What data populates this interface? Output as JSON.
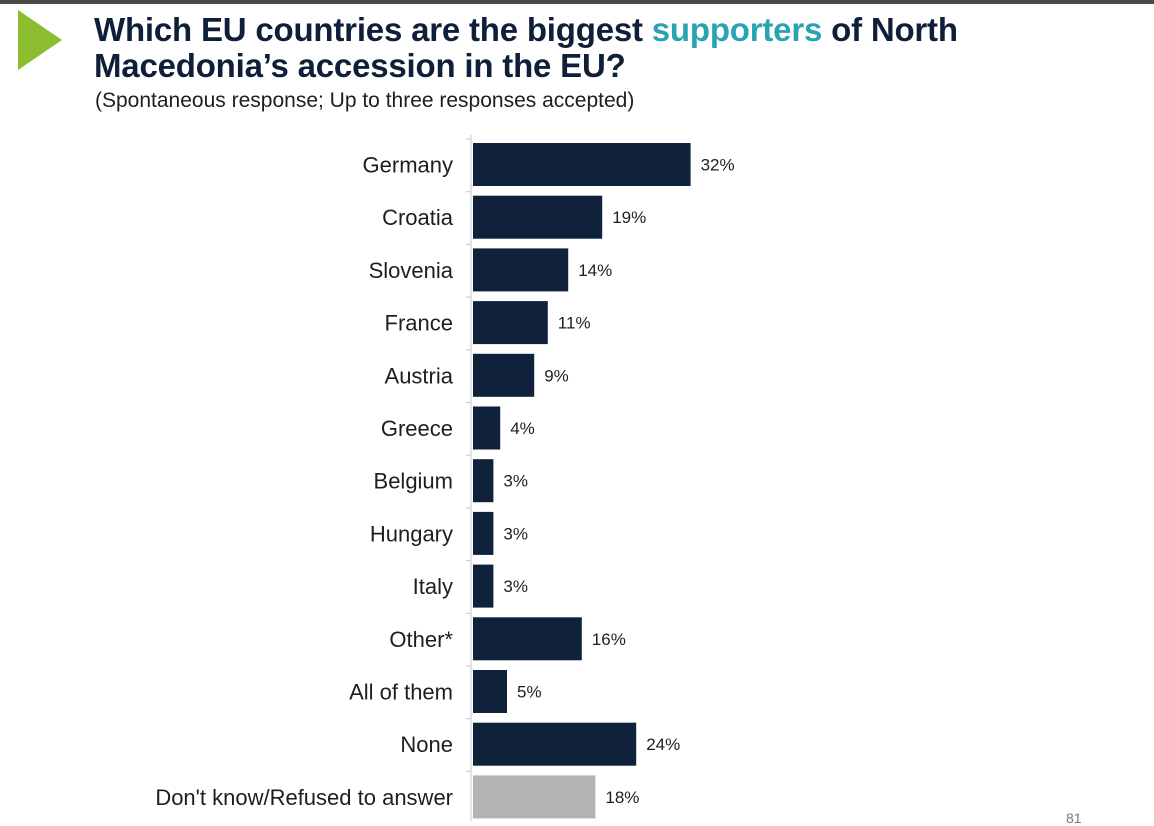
{
  "header": {
    "title_part1": "Which EU countries are the biggest ",
    "title_highlight": "supporters",
    "title_part2": " of North Macedonia’s accession in the EU?",
    "subtitle": "(Spontaneous response; Up to three responses accepted)",
    "highlight_color": "#2aa3b3",
    "icon": "play-triangle-icon"
  },
  "page_number": "81",
  "colors": {
    "bar": "#10213c",
    "bar_muted": "#b3b3b3",
    "accent": "#8cbc2f"
  },
  "chart_data": {
    "type": "bar",
    "orientation": "horizontal",
    "categories": [
      "Germany",
      "Croatia",
      "Slovenia",
      "France",
      "Austria",
      "Greece",
      "Belgium",
      "Hungary",
      "Italy",
      "Other*",
      "All of them",
      "None",
      "Don't know/Refused to answer"
    ],
    "values": [
      32,
      19,
      14,
      11,
      9,
      4,
      3,
      3,
      3,
      16,
      5,
      24,
      18
    ],
    "value_labels": [
      "32%",
      "19%",
      "14%",
      "11%",
      "9%",
      "4%",
      "3%",
      "3%",
      "3%",
      "16%",
      "5%",
      "24%",
      "18%"
    ],
    "muted_categories": [
      "Don't know/Refused to answer"
    ],
    "unit": "%",
    "title": "",
    "xlabel": "",
    "ylabel": "",
    "grid": false,
    "legend": "none"
  }
}
